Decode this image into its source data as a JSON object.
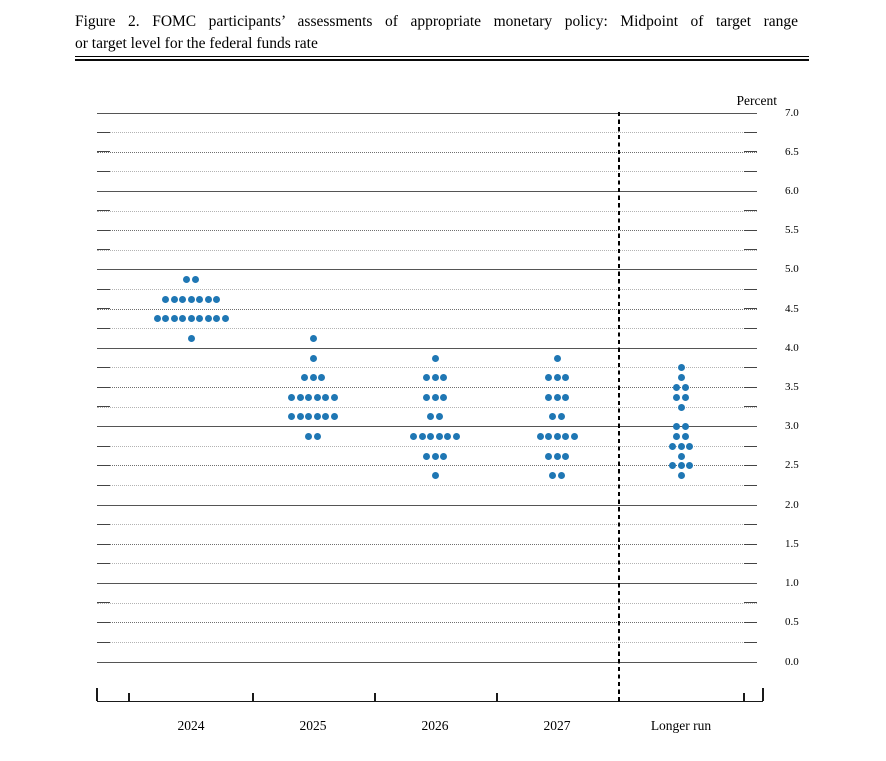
{
  "figure": {
    "title_line1": "Figure 2.  FOMC participants’ assessments of appropriate monetary policy:  Midpoint of target range",
    "title_line2": "or target level for the federal funds rate"
  },
  "chart_data": {
    "type": "scatter",
    "subtype": "fomc-dot-plot",
    "title": "FOMC participants’ assessments of appropriate monetary policy: Midpoint of target range or target level for the federal funds rate",
    "ylabel": "Percent",
    "ylim": [
      0.0,
      7.0
    ],
    "ytick_step": 0.5,
    "grid_step": 0.25,
    "grid": "on",
    "legend_position": "none",
    "ytick_labels": [
      "7.0",
      "6.5",
      "6.0",
      "5.5",
      "5.0",
      "4.5",
      "4.0",
      "3.5",
      "3.0",
      "2.5",
      "2.0",
      "1.5",
      "1.0",
      "0.5",
      "0.0"
    ],
    "categories": [
      "2024",
      "2025",
      "2026",
      "2027",
      "Longer run"
    ],
    "separator_after_category": "2027",
    "series": [
      {
        "category": "2024",
        "dots": [
          {
            "value": 4.875,
            "count": 2
          },
          {
            "value": 4.625,
            "count": 7
          },
          {
            "value": 4.375,
            "count": 9
          },
          {
            "value": 4.125,
            "count": 1
          }
        ]
      },
      {
        "category": "2025",
        "dots": [
          {
            "value": 4.125,
            "count": 1
          },
          {
            "value": 3.875,
            "count": 1
          },
          {
            "value": 3.625,
            "count": 3
          },
          {
            "value": 3.375,
            "count": 6
          },
          {
            "value": 3.125,
            "count": 6
          },
          {
            "value": 2.875,
            "count": 2
          }
        ]
      },
      {
        "category": "2026",
        "dots": [
          {
            "value": 3.875,
            "count": 1
          },
          {
            "value": 3.625,
            "count": 3
          },
          {
            "value": 3.375,
            "count": 3
          },
          {
            "value": 3.125,
            "count": 2
          },
          {
            "value": 2.875,
            "count": 6
          },
          {
            "value": 2.625,
            "count": 3
          },
          {
            "value": 2.375,
            "count": 1
          }
        ]
      },
      {
        "category": "2027",
        "dots": [
          {
            "value": 3.875,
            "count": 1
          },
          {
            "value": 3.625,
            "count": 3
          },
          {
            "value": 3.375,
            "count": 3
          },
          {
            "value": 3.125,
            "count": 2
          },
          {
            "value": 2.875,
            "count": 5
          },
          {
            "value": 2.625,
            "count": 3
          },
          {
            "value": 2.375,
            "count": 2
          }
        ]
      },
      {
        "category": "Longer run",
        "dots": [
          {
            "value": 3.75,
            "count": 1
          },
          {
            "value": 3.625,
            "count": 1
          },
          {
            "value": 3.5,
            "count": 2
          },
          {
            "value": 3.375,
            "count": 2
          },
          {
            "value": 3.25,
            "count": 1
          },
          {
            "value": 3.0,
            "count": 2
          },
          {
            "value": 2.875,
            "count": 2
          },
          {
            "value": 2.75,
            "count": 3
          },
          {
            "value": 2.625,
            "count": 1
          },
          {
            "value": 2.5,
            "count": 3
          },
          {
            "value": 2.375,
            "count": 1
          }
        ]
      }
    ],
    "colors": {
      "dot": "#1f77b4"
    }
  }
}
